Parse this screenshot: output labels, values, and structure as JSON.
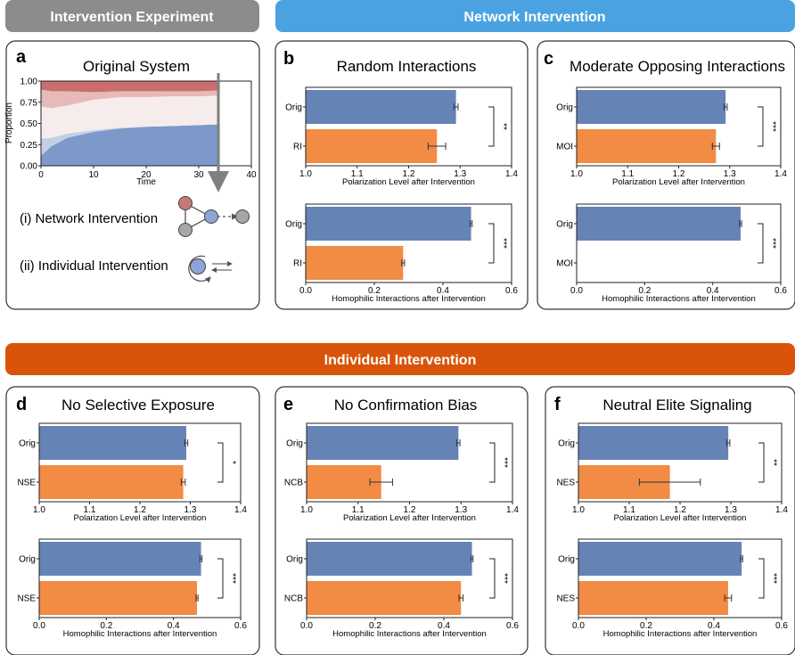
{
  "colors": {
    "banner_gray": "#8c8c8c",
    "banner_blue": "#4aa3e0",
    "banner_orange": "#d9540a",
    "bar_orig": "#6683b6",
    "bar_intervention": "#f28b44",
    "stack_dark_red": "#c96d6d",
    "stack_light_red": "#e8b9b9",
    "stack_pale": "#f7ecec",
    "stack_light_blue": "#c4cfe4",
    "stack_blue": "#7c99c9",
    "node_red": "#c47a7a",
    "node_blue": "#8ea4d6",
    "node_gray": "#a6a6a6"
  },
  "banners": {
    "intervention_experiment": "Intervention Experiment",
    "network_intervention": "Network Intervention",
    "individual_intervention": "Individual Intervention"
  },
  "panel_a": {
    "letter": "a",
    "title": "Original System",
    "ylabel": "Proportion",
    "xlabel": "Time",
    "yticks": [
      "0.00",
      "0.25",
      "0.50",
      "0.75",
      "1.00"
    ],
    "xticks": [
      "0",
      "10",
      "20",
      "30",
      "40"
    ],
    "network_label": "(i) Network Intervention",
    "individual_label": "(ii) Individual Intervention"
  },
  "axis_labels": {
    "polarization": "Polarization Level after Intervention",
    "homophilic": "Homophilic Interactions after Intervention"
  },
  "ticks": {
    "polarization": [
      "1.0",
      "1.1",
      "1.2",
      "1.3",
      "1.4"
    ],
    "homophilic": [
      "0.0",
      "0.2",
      "0.4",
      "0.6"
    ]
  },
  "panels": [
    {
      "letter": "b",
      "title": "Random Interactions"
    },
    {
      "letter": "c",
      "title": "Moderate Opposing Interactions"
    },
    {
      "letter": "d",
      "title": "No Selective Exposure"
    },
    {
      "letter": "e",
      "title": "No Confirmation Bias"
    },
    {
      "letter": "f",
      "title": "Neutral Elite Signaling"
    }
  ],
  "chart_data": [
    {
      "type": "area",
      "title": "Original System",
      "xlabel": "Time",
      "ylabel": "Proportion",
      "xlim": [
        0,
        40
      ],
      "ylim": [
        0,
        1
      ],
      "x": [
        0,
        2,
        5,
        10,
        15,
        20,
        25,
        30,
        34
      ],
      "series": [
        {
          "values": [
            0.12,
            0.23,
            0.33,
            0.4,
            0.44,
            0.46,
            0.47,
            0.48,
            0.49
          ]
        },
        {
          "values": [
            0.2,
            0.1,
            0.05,
            0.02,
            0.01,
            0.0,
            0.0,
            0.0,
            0.0
          ]
        },
        {
          "values": [
            0.38,
            0.35,
            0.33,
            0.36,
            0.36,
            0.35,
            0.35,
            0.34,
            0.34
          ]
        },
        {
          "values": [
            0.2,
            0.2,
            0.17,
            0.09,
            0.07,
            0.07,
            0.06,
            0.06,
            0.06
          ]
        },
        {
          "values": [
            0.1,
            0.12,
            0.12,
            0.13,
            0.12,
            0.12,
            0.12,
            0.12,
            0.11
          ]
        }
      ]
    },
    {
      "type": "bar",
      "orientation": "horizontal",
      "panel": "b",
      "title": "Random Interactions",
      "subplots": [
        {
          "xlabel": "Polarization Level after Intervention",
          "xlim": [
            1.0,
            1.4
          ],
          "categories": [
            "Orig",
            "RI"
          ],
          "values": [
            1.292,
            1.255
          ],
          "errors": [
            0.004,
            0.017
          ],
          "significance": "**"
        },
        {
          "xlabel": "Homophilic Interactions after Intervention",
          "xlim": [
            0.0,
            0.6
          ],
          "categories": [
            "Orig",
            "RI"
          ],
          "values": [
            0.482,
            0.284
          ],
          "errors": [
            0.003,
            0.004
          ],
          "significance": "***"
        }
      ]
    },
    {
      "type": "bar",
      "orientation": "horizontal",
      "panel": "c",
      "title": "Moderate Opposing Interactions",
      "subplots": [
        {
          "xlabel": "Polarization Level after Intervention",
          "xlim": [
            1.0,
            1.4
          ],
          "categories": [
            "Orig",
            "MOI"
          ],
          "values": [
            1.292,
            1.273
          ],
          "errors": [
            0.003,
            0.007
          ],
          "significance": "***"
        },
        {
          "xlabel": "Homophilic Interactions after Intervention",
          "xlim": [
            0.0,
            0.6
          ],
          "categories": [
            "Orig",
            "MOI"
          ],
          "values": [
            0.482,
            0.0
          ],
          "errors": [
            0.003,
            0.0
          ],
          "significance": "***"
        }
      ]
    },
    {
      "type": "bar",
      "orientation": "horizontal",
      "panel": "d",
      "title": "No Selective Exposure",
      "subplots": [
        {
          "xlabel": "Polarization Level after Intervention",
          "xlim": [
            1.0,
            1.4
          ],
          "categories": [
            "Orig",
            "NSE"
          ],
          "values": [
            1.292,
            1.286
          ],
          "errors": [
            0.003,
            0.004
          ],
          "significance": "*"
        },
        {
          "xlabel": "Homophilic Interactions after Intervention",
          "xlim": [
            0.0,
            0.6
          ],
          "categories": [
            "Orig",
            "NSE"
          ],
          "values": [
            0.482,
            0.47
          ],
          "errors": [
            0.003,
            0.003
          ],
          "significance": "***"
        }
      ]
    },
    {
      "type": "bar",
      "orientation": "horizontal",
      "panel": "e",
      "title": "No Confirmation Bias",
      "subplots": [
        {
          "xlabel": "Polarization Level after Intervention",
          "xlim": [
            1.0,
            1.4
          ],
          "categories": [
            "Orig",
            "NCB"
          ],
          "values": [
            1.295,
            1.145
          ],
          "errors": [
            0.003,
            0.022
          ],
          "significance": "***"
        },
        {
          "xlabel": "Homophilic Interactions after Intervention",
          "xlim": [
            0.0,
            0.6
          ],
          "categories": [
            "Orig",
            "NCB"
          ],
          "values": [
            0.482,
            0.45
          ],
          "errors": [
            0.003,
            0.006
          ],
          "significance": "***"
        }
      ]
    },
    {
      "type": "bar",
      "orientation": "horizontal",
      "panel": "f",
      "title": "Neutral Elite Signaling",
      "subplots": [
        {
          "xlabel": "Polarization Level after Intervention",
          "xlim": [
            1.0,
            1.4
          ],
          "categories": [
            "Orig",
            "NES"
          ],
          "values": [
            1.295,
            1.18
          ],
          "errors": [
            0.003,
            0.06
          ],
          "significance": "**"
        },
        {
          "xlabel": "Homophilic Interactions after Intervention",
          "xlim": [
            0.0,
            0.6
          ],
          "categories": [
            "Orig",
            "NES"
          ],
          "values": [
            0.482,
            0.442
          ],
          "errors": [
            0.003,
            0.01
          ],
          "significance": "***"
        }
      ]
    }
  ]
}
